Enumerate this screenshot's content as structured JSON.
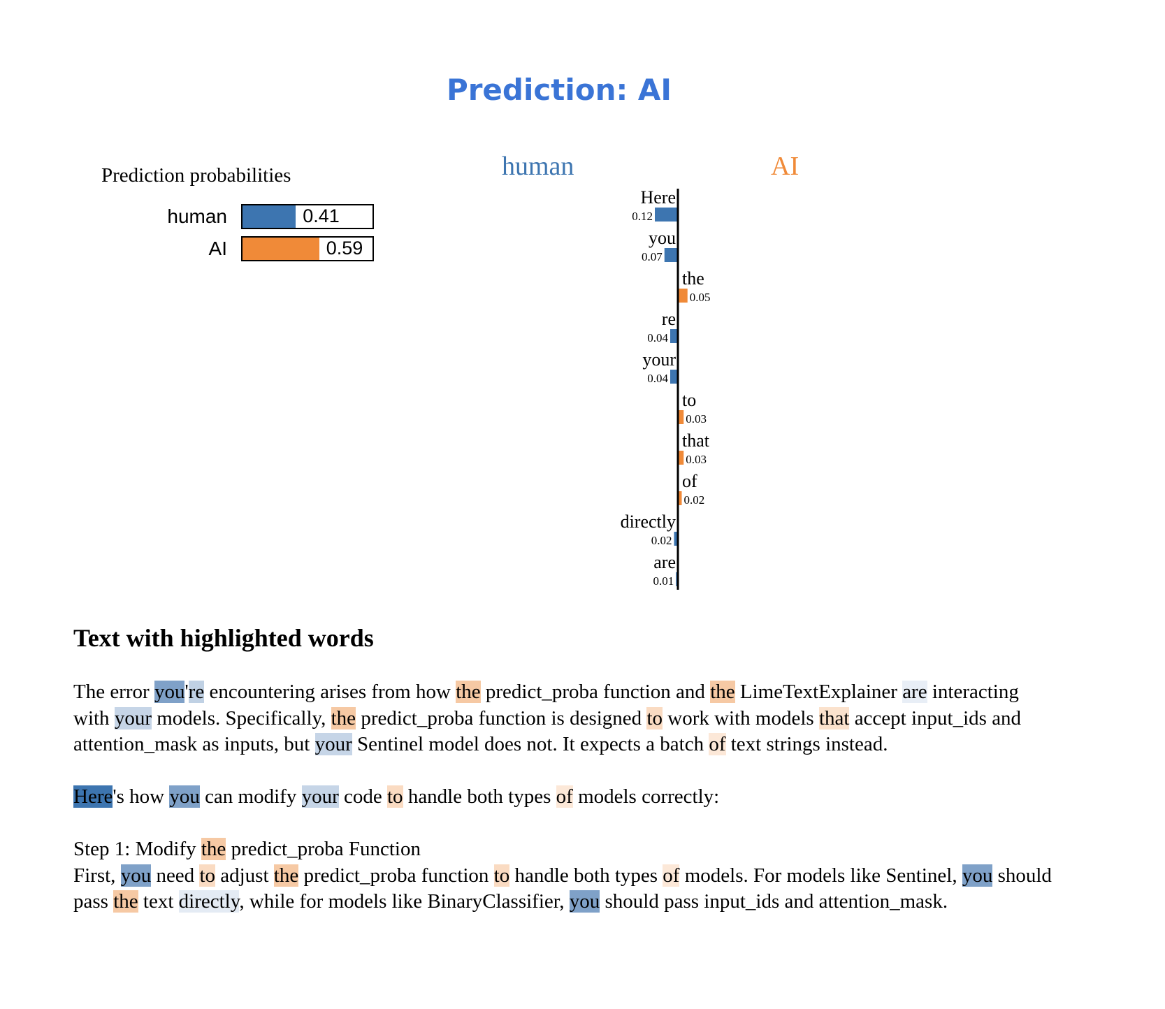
{
  "title": "Prediction: AI",
  "probabilities": {
    "title": "Prediction probabilities",
    "items": [
      {
        "label": "human",
        "value": 0.41,
        "value_text": "0.41",
        "color": "#3d75b0"
      },
      {
        "label": "AI",
        "value": 0.59,
        "value_text": "0.59",
        "color": "#f08a38"
      }
    ]
  },
  "class_labels": {
    "left": "human",
    "right": "AI",
    "left_color": "#3d75b0",
    "right_color": "#f08a38"
  },
  "chart_data": {
    "type": "bar",
    "orientation": "horizontal-diverging",
    "categories": [
      "Here",
      "you",
      "the",
      "re",
      "your",
      "to",
      "that",
      "of",
      "directly",
      "are"
    ],
    "values": [
      0.12,
      0.07,
      0.05,
      0.04,
      0.04,
      0.03,
      0.03,
      0.02,
      0.02,
      0.01
    ],
    "value_labels": [
      "0.12",
      "0.07",
      "0.05",
      "0.04",
      "0.04",
      "0.03",
      "0.03",
      "0.02",
      "0.02",
      "0.01"
    ],
    "classes": [
      "human",
      "human",
      "AI",
      "human",
      "human",
      "AI",
      "AI",
      "AI",
      "human",
      "human"
    ],
    "colors": {
      "human": "#3d75b0",
      "AI": "#f08a38"
    }
  },
  "highlight": {
    "title": "Text with highlighted words",
    "paragraphs": [
      [
        {
          "t": "The error "
        },
        {
          "t": "you",
          "c": "#7fa1c8"
        },
        {
          "t": "'"
        },
        {
          "t": "re",
          "c": "#c0d1e4"
        },
        {
          "t": " encountering arises from how "
        },
        {
          "t": "the",
          "c": "#f6c9a4"
        },
        {
          "t": " predict_proba function and "
        },
        {
          "t": "the",
          "c": "#f6c9a4"
        },
        {
          "t": " LimeTextExplainer "
        },
        {
          "t": "are",
          "c": "#e8eef6"
        },
        {
          "t": " interacting with "
        },
        {
          "t": "your",
          "c": "#c6d5e7"
        },
        {
          "t": " models. Specifically, "
        },
        {
          "t": "the",
          "c": "#f6c9a4"
        },
        {
          "t": " predict_proba function is designed "
        },
        {
          "t": "to",
          "c": "#fadbc2"
        },
        {
          "t": " work with models "
        },
        {
          "t": "that",
          "c": "#fbe2cd"
        },
        {
          "t": " accept input_ids and attention_mask as inputs, but "
        },
        {
          "t": "your",
          "c": "#c6d5e7"
        },
        {
          "t": " Sentinel model does not. It expects a batch "
        },
        {
          "t": "of",
          "c": "#fce8d8"
        },
        {
          "t": " text strings instead."
        }
      ],
      [
        {
          "t": "Here",
          "c": "#3d75b0"
        },
        {
          "t": "'s how "
        },
        {
          "t": "you",
          "c": "#7fa1c8"
        },
        {
          "t": " can modify "
        },
        {
          "t": "your",
          "c": "#c6d5e7"
        },
        {
          "t": " code "
        },
        {
          "t": "to",
          "c": "#fadbc2"
        },
        {
          "t": " handle both types "
        },
        {
          "t": "of",
          "c": "#fce8d8"
        },
        {
          "t": " models correctly:"
        }
      ],
      [
        {
          "t": "Step 1: Modify "
        },
        {
          "t": "the",
          "c": "#f6c9a4"
        },
        {
          "t": " predict_proba Function"
        }
      ],
      [
        {
          "t": "First, "
        },
        {
          "t": "you",
          "c": "#7fa1c8"
        },
        {
          "t": " need "
        },
        {
          "t": "to",
          "c": "#fadbc2"
        },
        {
          "t": " adjust "
        },
        {
          "t": "the",
          "c": "#f6c9a4"
        },
        {
          "t": " predict_proba function "
        },
        {
          "t": "to",
          "c": "#fadbc2"
        },
        {
          "t": " handle both types "
        },
        {
          "t": "of",
          "c": "#fce8d8"
        },
        {
          "t": " models. For models like Sentinel, "
        },
        {
          "t": "you",
          "c": "#7fa1c8"
        },
        {
          "t": " should pass "
        },
        {
          "t": "the",
          "c": "#f6c9a4"
        },
        {
          "t": " text "
        },
        {
          "t": "directly",
          "c": "#e4ebf4"
        },
        {
          "t": ", while for models like BinaryClassifier, "
        },
        {
          "t": "you",
          "c": "#7fa1c8"
        },
        {
          "t": " should pass input_ids and attention_mask."
        }
      ]
    ]
  }
}
